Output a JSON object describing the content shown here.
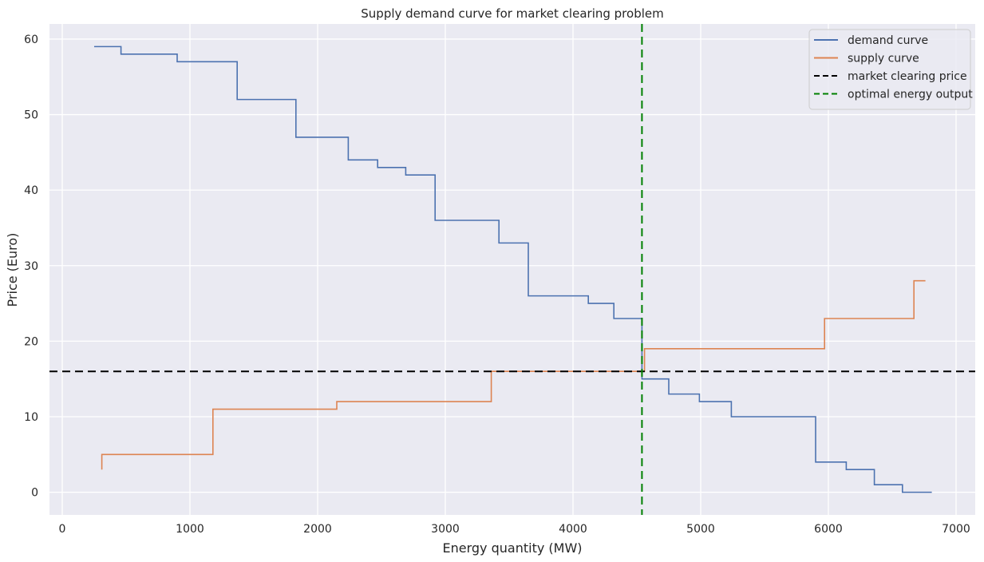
{
  "chart_data": {
    "type": "line",
    "title": "Supply demand curve for market clearing problem",
    "xlabel": "Energy quantity (MW)",
    "ylabel": "Price (Euro)",
    "xlim": [
      -100,
      7150
    ],
    "ylim": [
      -3,
      62
    ],
    "xticks": [
      0,
      1000,
      2000,
      3000,
      4000,
      5000,
      6000,
      7000
    ],
    "yticks": [
      0,
      10,
      20,
      30,
      40,
      50,
      60
    ],
    "grid": true,
    "legend_position": "top-right",
    "series": [
      {
        "name": "demand curve",
        "color": "#4c72b0",
        "style": "step",
        "x": [
          250,
          460,
          900,
          1370,
          1830,
          2240,
          2470,
          2690,
          2920,
          3420,
          3650,
          4120,
          4320,
          4540,
          4540,
          4750,
          4990,
          5240,
          5900,
          6140,
          6360,
          6580,
          6810
        ],
        "y": [
          59,
          58,
          57,
          52,
          47,
          44,
          43,
          42,
          36,
          33,
          26,
          25,
          23,
          16,
          15,
          13,
          12,
          10,
          4,
          3,
          1,
          0,
          0
        ]
      },
      {
        "name": "supply curve",
        "color": "#dd8452",
        "style": "step",
        "x": [
          310,
          310,
          1180,
          2150,
          3360,
          4560,
          5970,
          6670,
          6760
        ],
        "y": [
          3,
          5,
          11,
          12,
          16,
          19,
          23,
          28,
          28
        ]
      },
      {
        "name": "market clearing price",
        "color": "#000000",
        "style": "dashed-horizontal",
        "y_value": 16
      },
      {
        "name": "optimal energy output",
        "color": "#008000",
        "style": "dashed-vertical",
        "x_value": 4540
      }
    ]
  }
}
